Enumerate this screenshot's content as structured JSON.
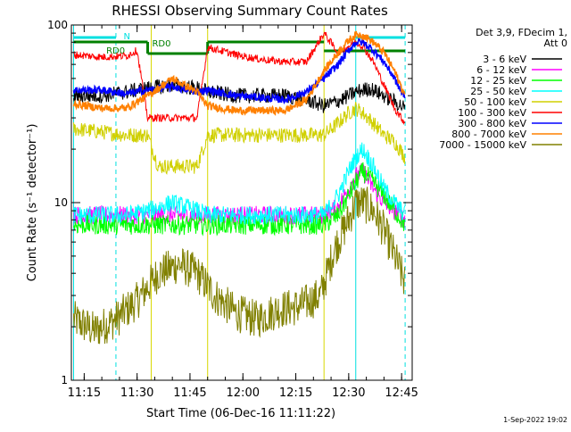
{
  "chart_data": {
    "type": "line",
    "title": "RHESSI Observing Summary Count Rates",
    "xlabel": "Start Time (06-Dec-16 11:11:22)",
    "ylabel": "Count Rate (s⁻¹ detector⁻¹)",
    "y_scale": "log",
    "ylim": [
      1,
      100
    ],
    "xlim": [
      "11:11:22",
      "12:48:00"
    ],
    "x_ticks": [
      "11:15",
      "11:30",
      "11:45",
      "12:00",
      "12:15",
      "12:30",
      "12:45"
    ],
    "y_ticks": [
      "1",
      "10",
      "100"
    ],
    "grid": false,
    "legend_title": [
      "Det 3,9, FDecim 1,",
      "Att 0"
    ],
    "legend_position": "right",
    "footer": "1-Sep-2022 19:02",
    "annotations": {
      "flags": [
        {
          "label": "N",
          "color": "#00e0e0"
        },
        {
          "label": "RD0",
          "color": "#008000"
        }
      ],
      "vertical_lines_cyan_dashed": [
        "11:24",
        "12:46"
      ],
      "vertical_lines_cyan_solid": [
        "11:12",
        "12:32"
      ],
      "vertical_lines_yellow": [
        "11:34",
        "11:50",
        "12:23"
      ]
    },
    "series": [
      {
        "name": "3 - 6 keV",
        "color": "#000000",
        "x": [
          "11:12",
          "11:20",
          "11:27",
          "11:33",
          "11:40",
          "11:47",
          "11:50",
          "11:58",
          "12:05",
          "12:12",
          "12:18",
          "12:23",
          "12:28",
          "12:32",
          "12:36",
          "12:40",
          "12:44",
          "12:46"
        ],
        "values": [
          40,
          40,
          42,
          44,
          46,
          44,
          42,
          40,
          40,
          40,
          38,
          35,
          38,
          42,
          44,
          40,
          36,
          34
        ]
      },
      {
        "name": "6 - 12 keV",
        "color": "#ff00ff",
        "x": [
          "11:12",
          "11:20",
          "11:27",
          "11:33",
          "11:40",
          "11:47",
          "11:50",
          "11:58",
          "12:05",
          "12:12",
          "12:18",
          "12:23",
          "12:27",
          "12:30",
          "12:32",
          "12:34",
          "12:37",
          "12:40",
          "12:43",
          "12:46"
        ],
        "values": [
          8.5,
          8.5,
          8.5,
          8.5,
          8.5,
          8.5,
          8.5,
          8.5,
          8.5,
          8.5,
          8.5,
          8.5,
          9.5,
          12,
          14,
          15,
          12,
          10,
          9,
          8
        ]
      },
      {
        "name": "12 - 25 keV",
        "color": "#00ff00",
        "x": [
          "11:12",
          "11:20",
          "11:27",
          "11:33",
          "11:40",
          "11:47",
          "11:50",
          "11:58",
          "12:05",
          "12:12",
          "12:18",
          "12:23",
          "12:27",
          "12:30",
          "12:32",
          "12:34",
          "12:37",
          "12:40",
          "12:43",
          "12:46"
        ],
        "values": [
          7.5,
          7.5,
          7.5,
          7.5,
          7.5,
          7.5,
          7.5,
          7.5,
          7.5,
          7.5,
          7.5,
          7.5,
          8.5,
          11,
          13,
          15,
          13,
          11,
          9,
          7.5
        ]
      },
      {
        "name": "25 - 50 keV",
        "color": "#00ffff",
        "x": [
          "11:12",
          "11:20",
          "11:27",
          "11:33",
          "11:40",
          "11:47",
          "11:50",
          "11:58",
          "12:05",
          "12:12",
          "12:18",
          "12:23",
          "12:27",
          "12:30",
          "12:32",
          "12:34",
          "12:37",
          "12:40",
          "12:43",
          "12:46"
        ],
        "values": [
          8.5,
          8.5,
          8.5,
          9,
          10,
          9,
          8.5,
          8.5,
          8.5,
          8.5,
          8.5,
          8.5,
          11,
          15,
          18,
          20,
          16,
          12,
          10,
          8.5
        ]
      },
      {
        "name": "50 - 100 keV",
        "color": "#d0d000",
        "x": [
          "11:12",
          "11:20",
          "11:27",
          "11:33",
          "11:36",
          "11:40",
          "11:44",
          "11:47",
          "11:50",
          "11:58",
          "12:05",
          "12:12",
          "12:18",
          "12:23",
          "12:27",
          "12:30",
          "12:32",
          "12:34",
          "12:37",
          "12:40",
          "12:43",
          "12:46"
        ],
        "values": [
          26,
          25,
          24,
          24,
          16,
          16,
          16,
          16,
          24,
          24,
          24,
          24,
          24,
          24,
          28,
          32,
          34,
          32,
          28,
          24,
          22,
          18
        ]
      },
      {
        "name": "100 - 300 keV",
        "color": "#ff0000",
        "x": [
          "11:12",
          "11:20",
          "11:27",
          "11:30",
          "11:33",
          "11:40",
          "11:47",
          "11:50",
          "11:58",
          "12:05",
          "12:12",
          "12:18",
          "12:23",
          "12:27",
          "12:30",
          "12:32",
          "12:34",
          "12:37",
          "12:40",
          "12:43",
          "12:46"
        ],
        "values": [
          68,
          66,
          67,
          72,
          30,
          30,
          30,
          75,
          68,
          64,
          62,
          62,
          90,
          70,
          76,
          80,
          76,
          62,
          46,
          34,
          28
        ]
      },
      {
        "name": "300 - 800 keV",
        "color": "#0000ff",
        "x": [
          "11:12",
          "11:20",
          "11:27",
          "11:33",
          "11:40",
          "11:47",
          "11:50",
          "11:58",
          "12:05",
          "12:12",
          "12:18",
          "12:23",
          "12:27",
          "12:30",
          "12:32",
          "12:34",
          "12:37",
          "12:40",
          "12:43",
          "12:46"
        ],
        "values": [
          43,
          43,
          41,
          43,
          45,
          42,
          43,
          40,
          39,
          38,
          42,
          50,
          60,
          72,
          80,
          80,
          72,
          62,
          50,
          38
        ]
      },
      {
        "name": "800 - 7000 keV",
        "color": "#ff8000",
        "x": [
          "11:12",
          "11:20",
          "11:27",
          "11:33",
          "11:40",
          "11:47",
          "11:50",
          "11:58",
          "12:05",
          "12:12",
          "12:18",
          "12:23",
          "12:27",
          "12:30",
          "12:32",
          "12:34",
          "12:37",
          "12:40",
          "12:43",
          "12:46"
        ],
        "values": [
          36,
          34,
          34,
          40,
          50,
          42,
          35,
          33,
          33,
          33,
          38,
          55,
          70,
          82,
          88,
          88,
          80,
          70,
          55,
          40
        ]
      },
      {
        "name": "7000 - 15000 keV",
        "color": "#808000",
        "x": [
          "11:12",
          "11:18",
          "11:24",
          "11:30",
          "11:36",
          "11:42",
          "11:47",
          "11:52",
          "11:58",
          "12:04",
          "12:10",
          "12:16",
          "12:22",
          "12:26",
          "12:30",
          "12:32",
          "12:34",
          "12:37",
          "12:40",
          "12:43",
          "12:46"
        ],
        "values": [
          2.2,
          1.9,
          2.2,
          2.8,
          4,
          4.5,
          4,
          3,
          2.4,
          2.2,
          2.5,
          2.6,
          3,
          5.5,
          8,
          10,
          10,
          9,
          7,
          5,
          3.5
        ]
      }
    ]
  }
}
